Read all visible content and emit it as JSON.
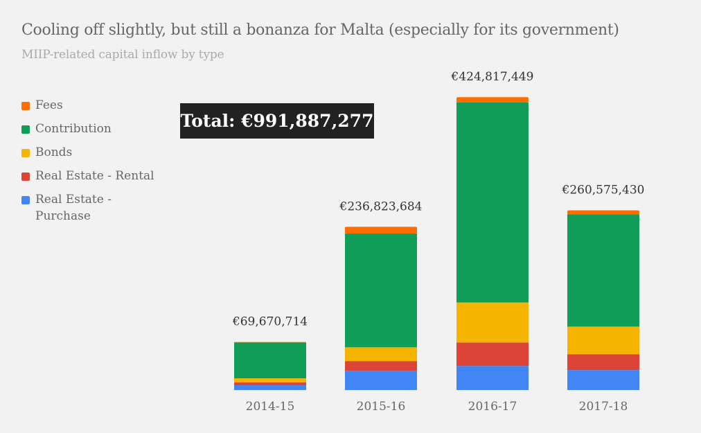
{
  "chart_data": {
    "type": "bar",
    "stacked": true,
    "title": "Cooling off slightly, but still a bonanza for Malta (especially for its government)",
    "subtitle": "MIIP-related capital inflow by type",
    "xlabel": "",
    "ylabel": "",
    "unit": "EUR (millions, estimated)",
    "ylim": [
      0,
      425
    ],
    "grid": false,
    "legend_position": "left",
    "categories": [
      "2014-15",
      "2015-16",
      "2016-17",
      "2017-18"
    ],
    "series": [
      {
        "name": "Real Estate - Purchase",
        "color": "#4285f4",
        "values": [
          7,
          28,
          35,
          29
        ]
      },
      {
        "name": "Real Estate - Rental",
        "color": "#db4437",
        "values": [
          4,
          14,
          34,
          23
        ]
      },
      {
        "name": "Bonds",
        "color": "#f4b400",
        "values": [
          6,
          20,
          58,
          40
        ]
      },
      {
        "name": "Contribution",
        "color": "#0f9d58",
        "values": [
          52,
          165,
          290,
          163
        ]
      },
      {
        "name": "Fees",
        "color": "#ff6d00",
        "values": [
          0.7,
          9.8,
          7.8,
          5.6
        ]
      }
    ],
    "totals": [
      69670714,
      236823684,
      424817449,
      260575430
    ],
    "total_labels": [
      "€69,670,714",
      "€236,823,684",
      "€424,817,449",
      "€260,575,430"
    ],
    "annotation": "Total: €991,887,277"
  },
  "legend": [
    {
      "label": "Fees",
      "color": "#ff6d00"
    },
    {
      "label": "Contribution",
      "color": "#0f9d58"
    },
    {
      "label": "Bonds",
      "color": "#f4b400"
    },
    {
      "label": "Real Estate - Rental",
      "color": "#db4437"
    },
    {
      "label": "Real Estate - Purchase",
      "color": "#4285f4"
    }
  ]
}
